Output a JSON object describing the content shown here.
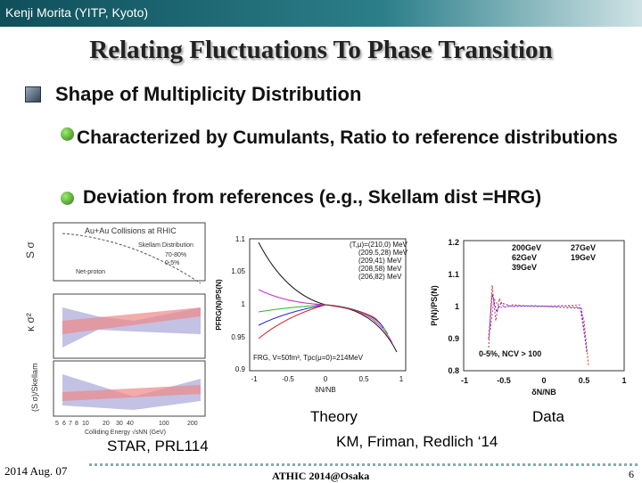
{
  "header": {
    "author": "Kenji Morita (YITP, Kyoto)"
  },
  "title": "Relating Fluctuations To Phase Transition",
  "bullets": [
    {
      "text": "Shape of Multiplicity Distribution",
      "sub": [
        "Characterized by  Cumulants, Ratio to reference distributions",
        "Deviation from references (e.g.,  Skellam dist =HRG)"
      ]
    }
  ],
  "figures": {
    "star": {
      "caption": "STAR, PRL114",
      "title": "Au+Au Collisions at RHIC",
      "legend": [
        "Skellam Distribution",
        "70-80%",
        "0-5%"
      ],
      "label": "Net-proton",
      "ylabels": [
        "S σ",
        "κ σ²",
        "(S σ)/Skellam"
      ],
      "xlabel": "Colliding Energy √sNN (GeV)",
      "xticks": [
        "5",
        "6",
        "7",
        "8",
        "10",
        "20",
        "30",
        "40",
        "100",
        "200"
      ]
    },
    "theory": {
      "caption": "Theory",
      "ylabel": "PFRG(N)/PS(N)",
      "xlabel": "δN/NB",
      "yticks": [
        "1.1",
        "1.05",
        "1",
        "0.95",
        "0.9"
      ],
      "xticks": [
        "-1",
        "-0.5",
        "0",
        "0.5",
        "1"
      ],
      "legend": [
        "(T,μ)=(210,0) MeV",
        "(209.5,28) MeV",
        "(209,41) MeV",
        "(208,58) MeV",
        "(206,82) MeV"
      ],
      "note": "FRG, V=50fm³, Tpc(μ=0)=214MeV"
    },
    "data": {
      "caption": "Data",
      "ylabel": "P(N)/PS(N)",
      "xlabel": "δN/NB",
      "yticks": [
        "1.2",
        "1.1",
        "1",
        "0.9",
        "0.8"
      ],
      "xticks": [
        "-1",
        "-0.5",
        "0",
        "0.5",
        "1"
      ],
      "legend": [
        "200GeV",
        "27GeV",
        "62GeV",
        "19GeV",
        "39GeV"
      ],
      "note": "0-5%, NCV > 100"
    },
    "reference": "KM, Friman, Redlich ‘14"
  },
  "footer": {
    "date": "2014 Aug. 07",
    "event": "ATHIC 2014@Osaka",
    "page": "6"
  }
}
